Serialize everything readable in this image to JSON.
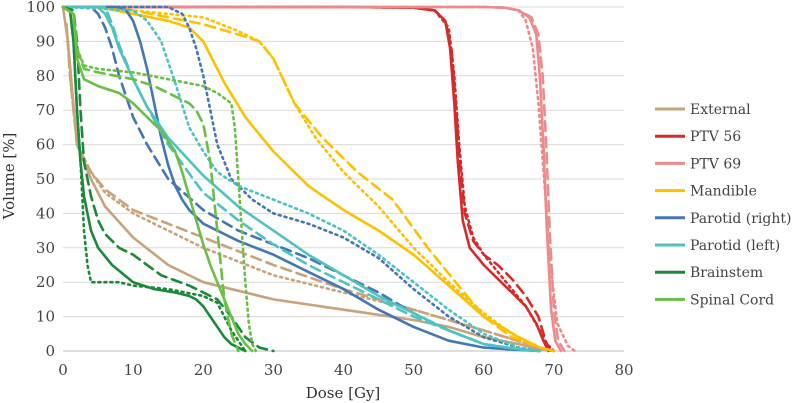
{
  "chart_data": {
    "type": "line",
    "xlabel": "Dose [Gy]",
    "ylabel": "Volume [%]",
    "xlim": [
      0,
      80
    ],
    "ylim": [
      0,
      100
    ],
    "xticks": [
      0,
      10,
      20,
      30,
      40,
      50,
      60,
      70,
      80
    ],
    "yticks": [
      0,
      10,
      20,
      30,
      40,
      50,
      60,
      70,
      80,
      90,
      100
    ],
    "grid": "horizontal",
    "legend_position": "right",
    "series": [
      {
        "name": "External",
        "color": "#c9a47b",
        "dash": "solid",
        "x": [
          0,
          0.7,
          2,
          4,
          6,
          10,
          15,
          20,
          30,
          40,
          50,
          55,
          60,
          65,
          68,
          70
        ],
        "y": [
          100,
          90,
          60,
          50,
          42,
          33,
          25,
          20,
          15,
          12,
          9,
          7,
          4,
          2,
          0.5,
          0
        ]
      },
      {
        "name": "External",
        "color": "#c9a47b",
        "dash": "dash",
        "x": [
          0.5,
          1,
          2,
          4,
          6,
          10,
          20,
          30,
          40,
          50,
          60,
          68,
          70
        ],
        "y": [
          95,
          80,
          60,
          52,
          47,
          41,
          33,
          25,
          18,
          12,
          6,
          1,
          0
        ]
      },
      {
        "name": "External",
        "color": "#c9a47b",
        "dash": "dot",
        "x": [
          0.5,
          1,
          2,
          4,
          6,
          10,
          20,
          30,
          40,
          50,
          60,
          68,
          70
        ],
        "y": [
          95,
          80,
          60,
          52,
          46,
          40,
          30,
          22,
          17,
          12,
          6,
          1,
          0
        ]
      },
      {
        "name": "PTV 56",
        "color": "#d72b2b",
        "dash": "solid",
        "x": [
          0,
          40,
          50,
          53,
          54.5,
          55.2,
          55.8,
          56.3,
          57,
          58,
          60,
          62,
          64,
          66,
          67.5,
          68.5,
          69.2
        ],
        "y": [
          100,
          100,
          99.8,
          99,
          96,
          88,
          72,
          55,
          38,
          30,
          25,
          21,
          17,
          13,
          8,
          3,
          0
        ]
      },
      {
        "name": "PTV 56",
        "color": "#d72b2b",
        "dash": "dash",
        "x": [
          0,
          40,
          50,
          53,
          54.5,
          55.4,
          56,
          56.6,
          57.3,
          58.5,
          60,
          62,
          64,
          66,
          67.8,
          68.8,
          69.5
        ],
        "y": [
          100,
          100,
          99.8,
          99,
          96,
          88,
          72,
          55,
          40,
          32,
          28,
          25,
          21,
          16,
          10,
          3,
          0
        ]
      },
      {
        "name": "PTV 56",
        "color": "#d72b2b",
        "dash": "dot",
        "x": [
          0,
          40,
          50,
          53,
          55,
          55.8,
          56.5,
          57.3,
          58.5,
          60,
          62,
          64,
          66,
          68,
          69,
          70
        ],
        "y": [
          100,
          100,
          99.8,
          99,
          94,
          80,
          60,
          42,
          33,
          28,
          23,
          18,
          13,
          6,
          2,
          0
        ]
      },
      {
        "name": "PTV 69",
        "color": "#ef8a8a",
        "dash": "solid",
        "x": [
          0,
          60,
          63,
          65,
          66.5,
          67.5,
          68,
          68.5,
          69,
          69.6,
          70.2,
          71
        ],
        "y": [
          100,
          100,
          99.8,
          99,
          97,
          92,
          80,
          60,
          35,
          12,
          3,
          0
        ]
      },
      {
        "name": "PTV 69",
        "color": "#ef8a8a",
        "dash": "dash",
        "x": [
          0,
          60,
          63,
          65,
          66.8,
          67.8,
          68.4,
          68.9,
          69.4,
          70,
          70.6,
          71.5
        ],
        "y": [
          100,
          100,
          99.8,
          99,
          97,
          92,
          80,
          60,
          35,
          12,
          3,
          0
        ]
      },
      {
        "name": "PTV 69",
        "color": "#ef8a8a",
        "dash": "dot",
        "x": [
          0,
          60,
          63,
          65,
          66,
          67,
          67.8,
          68.6,
          69.5,
          70.5,
          72,
          73
        ],
        "y": [
          100,
          100,
          99.8,
          99,
          96,
          88,
          72,
          50,
          25,
          8,
          1.5,
          0
        ]
      },
      {
        "name": "Mandible",
        "color": "#ffc000",
        "dash": "solid",
        "x": [
          0,
          5,
          10,
          15,
          18,
          20,
          23,
          26,
          30,
          35,
          40,
          45,
          50,
          55,
          60,
          65,
          68,
          70
        ],
        "y": [
          100,
          100,
          98,
          96,
          94,
          90,
          78,
          68,
          58,
          48,
          41,
          35,
          28,
          19,
          10,
          4,
          1,
          0
        ]
      },
      {
        "name": "Mandible",
        "color": "#ffc000",
        "dash": "dash",
        "x": [
          0,
          5,
          10,
          15,
          20,
          25,
          28,
          30,
          33,
          37,
          42,
          47,
          52,
          56,
          60,
          64,
          68,
          70
        ],
        "y": [
          100,
          100,
          99,
          97,
          95,
          92,
          90,
          85,
          72,
          62,
          52,
          44,
          30,
          20,
          10,
          4,
          1,
          0
        ]
      },
      {
        "name": "Mandible",
        "color": "#ffc000",
        "dash": "dot",
        "x": [
          0,
          5,
          10,
          15,
          20,
          25,
          28,
          30,
          33,
          36,
          40,
          45,
          50,
          55,
          60,
          64,
          68,
          70
        ],
        "y": [
          100,
          100,
          99,
          98,
          97,
          93,
          90,
          85,
          72,
          62,
          52,
          42,
          30,
          20,
          11,
          5,
          1,
          0
        ]
      },
      {
        "name": "Parotid (right)",
        "color": "#4576b5",
        "dash": "solid",
        "x": [
          0,
          8,
          9,
          10,
          11,
          12,
          13,
          14,
          15,
          16,
          17,
          18,
          20,
          25,
          30,
          35,
          40,
          45,
          50,
          55,
          60,
          65,
          68
        ],
        "y": [
          100,
          100,
          99,
          96,
          90,
          82,
          72,
          62,
          54,
          48,
          44,
          41,
          37,
          32,
          28,
          23,
          18,
          12,
          7,
          3,
          1,
          0.3,
          0
        ]
      },
      {
        "name": "Parotid (right)",
        "color": "#4576b5",
        "dash": "dash",
        "x": [
          0,
          4,
          5,
          6,
          7,
          8,
          10,
          12,
          15,
          20,
          25,
          30,
          35,
          40,
          45,
          50,
          55,
          60,
          65,
          68
        ],
        "y": [
          100,
          100,
          98,
          94,
          88,
          80,
          68,
          60,
          50,
          41,
          35,
          31,
          27,
          22,
          17,
          11,
          6,
          2,
          0.5,
          0
        ]
      },
      {
        "name": "Parotid (right)",
        "color": "#4576b5",
        "dash": "dot",
        "x": [
          0,
          15,
          17,
          18,
          19,
          20,
          21,
          22,
          24,
          27,
          30,
          35,
          40,
          45,
          50,
          55,
          60,
          65,
          68
        ],
        "y": [
          100,
          100,
          98,
          94,
          88,
          80,
          70,
          60,
          50,
          44,
          40,
          37,
          33,
          27,
          18,
          10,
          4,
          1,
          0
        ]
      },
      {
        "name": "Parotid (left)",
        "color": "#4ec3c3",
        "dash": "solid",
        "x": [
          0,
          5,
          6,
          7,
          8,
          10,
          12,
          15,
          20,
          25,
          30,
          35,
          40,
          45,
          50,
          55,
          60,
          65,
          68
        ],
        "y": [
          100,
          100,
          98,
          94,
          88,
          79,
          71,
          62,
          51,
          42,
          35,
          28,
          22,
          16,
          11,
          6,
          2,
          0.5,
          0
        ]
      },
      {
        "name": "Parotid (left)",
        "color": "#4ec3c3",
        "dash": "dash",
        "x": [
          0,
          6,
          7,
          8,
          10,
          12,
          15,
          20,
          25,
          30,
          35,
          40,
          45,
          50,
          55,
          60,
          65,
          68
        ],
        "y": [
          100,
          100,
          95,
          89,
          79,
          71,
          60,
          46,
          38,
          31,
          25,
          20,
          15,
          10,
          6,
          2,
          0.5,
          0
        ]
      },
      {
        "name": "Parotid (left)",
        "color": "#4ec3c3",
        "dash": "dot",
        "x": [
          0,
          10,
          12,
          14,
          16,
          18,
          20,
          22,
          25,
          30,
          35,
          40,
          45,
          50,
          55,
          60,
          65,
          68
        ],
        "y": [
          100,
          99,
          96,
          90,
          78,
          65,
          58,
          52,
          48,
          44,
          40,
          35,
          28,
          20,
          12,
          5,
          1,
          0
        ]
      },
      {
        "name": "Brainstem",
        "color": "#1a8a3a",
        "dash": "solid",
        "x": [
          0,
          1,
          1.5,
          2,
          2.5,
          3,
          4,
          5,
          7,
          10,
          13,
          16,
          18,
          19,
          20,
          21,
          22,
          23,
          24,
          25,
          26
        ],
        "y": [
          100,
          99,
          90,
          70,
          55,
          45,
          35,
          30,
          25,
          20,
          18,
          17,
          16,
          15,
          13,
          10,
          7,
          4,
          2,
          1,
          0
        ]
      },
      {
        "name": "Brainstem",
        "color": "#1a8a3a",
        "dash": "dash",
        "x": [
          0,
          1.5,
          2,
          2.5,
          3,
          4,
          5,
          6,
          8,
          10,
          14,
          18,
          20,
          22,
          24,
          26,
          28,
          30
        ],
        "y": [
          100,
          99,
          90,
          70,
          55,
          45,
          38,
          34,
          30,
          28,
          22,
          19,
          17,
          15,
          10,
          4,
          1,
          0
        ]
      },
      {
        "name": "Brainstem",
        "color": "#1a8a3a",
        "dash": "dot",
        "x": [
          0,
          1,
          1.5,
          2,
          2.5,
          3,
          3.5,
          4,
          6,
          8,
          10,
          15,
          20,
          22,
          23,
          24,
          25,
          26
        ],
        "y": [
          100,
          99,
          90,
          70,
          55,
          35,
          25,
          20,
          20,
          20,
          19,
          18,
          16,
          14,
          10,
          6,
          3,
          0
        ]
      },
      {
        "name": "Spinal Cord",
        "color": "#6abf45",
        "dash": "solid",
        "x": [
          0,
          1.5,
          2,
          3,
          5,
          8,
          10,
          12,
          14,
          16,
          17,
          18,
          19,
          20,
          21,
          22,
          23,
          24,
          25,
          26,
          27
        ],
        "y": [
          100,
          98,
          85,
          79,
          77,
          75,
          72,
          68,
          64,
          58,
          52,
          45,
          38,
          31,
          25,
          20,
          15,
          10,
          5,
          2,
          0
        ]
      },
      {
        "name": "Spinal Cord",
        "color": "#6abf45",
        "dash": "dash",
        "x": [
          0,
          1.5,
          2,
          3,
          5,
          10,
          13,
          16,
          18,
          19,
          20,
          21,
          21.5,
          22,
          22.5,
          23,
          24,
          25
        ],
        "y": [
          100,
          98,
          88,
          82,
          81,
          79,
          77,
          74,
          72,
          70,
          66,
          55,
          45,
          35,
          25,
          15,
          5,
          0
        ]
      },
      {
        "name": "Spinal Cord",
        "color": "#6abf45",
        "dash": "dot",
        "x": [
          0,
          1.5,
          2,
          3,
          5,
          10,
          15,
          20,
          22,
          24,
          24.5,
          25,
          25.5,
          26,
          26.5,
          27,
          27.5
        ],
        "y": [
          100,
          98,
          88,
          83,
          82,
          81,
          79,
          77,
          75,
          72,
          65,
          50,
          35,
          20,
          8,
          2,
          0
        ]
      }
    ],
    "legend": [
      {
        "label": "External",
        "color": "#c9a47b"
      },
      {
        "label": "PTV 56",
        "color": "#d72b2b"
      },
      {
        "label": "PTV 69",
        "color": "#ef8a8a"
      },
      {
        "label": "Mandible",
        "color": "#ffc000"
      },
      {
        "label": "Parotid (right)",
        "color": "#4576b5"
      },
      {
        "label": "Parotid (left)",
        "color": "#4ec3c3"
      },
      {
        "label": "Brainstem",
        "color": "#1a8a3a"
      },
      {
        "label": "Spinal Cord",
        "color": "#6abf45"
      }
    ]
  }
}
